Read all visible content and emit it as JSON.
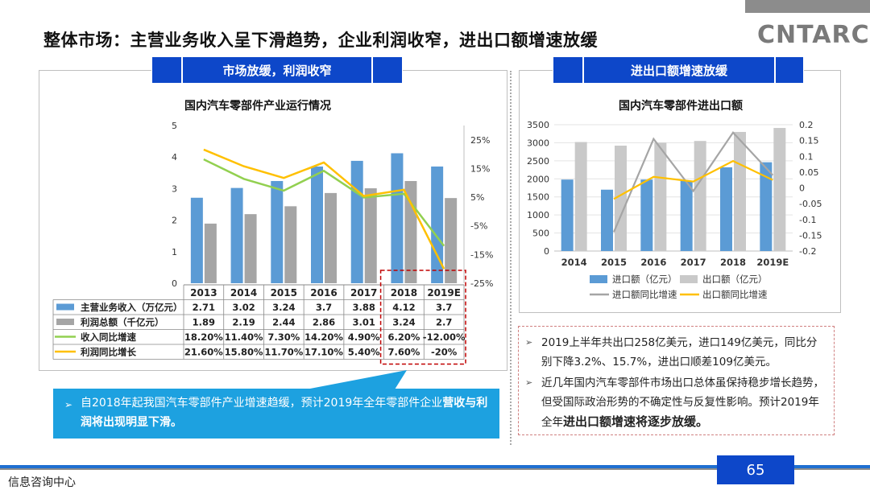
{
  "title": "整体市场：主营业务收入呈下滑趋势，企业利润收窄，进出口额增速放缓",
  "logo": "CNTARC",
  "left_header": "市场放缓，利润收窄",
  "right_header": "进出口额增速放缓",
  "callout": {
    "arrow": "➢",
    "text_plain": "自2018年起我国汽车零部件产业增速趋缓，预计2019年全年零部件企业",
    "text_bold": "营收与利润将出现明显下滑。"
  },
  "notes": {
    "arrow": "➢",
    "b1": "2019上半年共出口258亿美元，进口149亿美元，同比分别下降3.2%、15.7%，进出口顺差109亿美元。",
    "b2_plain": "近几年国内汽车零部件市场出口总体虽保持稳步增长趋势，但受国际政治形势的不确定性与反复性影响。预计2019年全年",
    "b2_bold": "进出口额增速将逐步放缓。"
  },
  "page_number": "65",
  "footer": "信息咨询中心",
  "colors": {
    "blue_bar": "#5b9bd5",
    "gray_bar": "#a5a5a5",
    "green_line": "#92d050",
    "yellow_line": "#ffc000",
    "gray_line": "#a5a5a5",
    "header_blue": "#0d47c9",
    "highlight_box": "#c00000"
  },
  "chart_data": [
    {
      "type": "bar",
      "title": "国内汽车零部件产业运行情况",
      "categories": [
        "2013",
        "2014",
        "2015",
        "2016",
        "2017",
        "2018",
        "2019E"
      ],
      "ylim": [
        0,
        5
      ],
      "yticks": [
        "0",
        "1",
        "2",
        "3",
        "4",
        "5"
      ],
      "y2lim": [
        -25,
        30
      ],
      "y2ticks": [
        "25%",
        "15%",
        "5%",
        "-5%",
        "-15%",
        "-25%"
      ],
      "y2tick_values": [
        25,
        15,
        5,
        -5,
        -15,
        -25
      ],
      "series": [
        {
          "name": "主营业务收入（万亿元）",
          "kind": "bar",
          "axis": "left",
          "values": [
            2.71,
            3.02,
            3.24,
            3.7,
            3.88,
            4.12,
            3.7
          ],
          "labels": [
            "2.71",
            "3.02",
            "3.24",
            "3.7",
            "3.88",
            "4.12",
            "3.7"
          ]
        },
        {
          "name": "利润总额（千亿元）",
          "kind": "bar",
          "axis": "left",
          "values": [
            1.89,
            2.19,
            2.44,
            2.86,
            3.01,
            3.24,
            2.7
          ],
          "labels": [
            "1.89",
            "2.19",
            "2.44",
            "2.86",
            "3.01",
            "3.24",
            "2.7"
          ]
        },
        {
          "name": "收入同比增速",
          "kind": "line",
          "axis": "right",
          "values": [
            18.2,
            11.4,
            7.3,
            14.2,
            4.9,
            6.2,
            -12.0
          ],
          "labels": [
            "18.20%",
            "11.40%",
            "7.30%",
            "14.20%",
            "4.90%",
            "6.20%",
            "-12.00%"
          ]
        },
        {
          "name": "利润同比增长",
          "kind": "line",
          "axis": "right",
          "values": [
            21.6,
            15.8,
            11.7,
            17.1,
            5.4,
            7.6,
            -20
          ],
          "labels": [
            "21.60%",
            "15.80%",
            "11.70%",
            "17.10%",
            "5.40%",
            "7.60%",
            "-20%"
          ]
        }
      ]
    },
    {
      "type": "bar",
      "title": "国内汽车零部件进出口额",
      "categories": [
        "2014",
        "2015",
        "2016",
        "2017",
        "2018",
        "2019E"
      ],
      "ylim": [
        0,
        3500
      ],
      "yticks": [
        "0",
        "500",
        "1000",
        "1500",
        "2000",
        "2500",
        "3000",
        "3500"
      ],
      "y2lim": [
        -0.2,
        0.2
      ],
      "y2ticks": [
        "0.2",
        "0.15",
        "0.1",
        "0.05",
        "0",
        "-0.05",
        "-0.1",
        "-0.15",
        "-0.2"
      ],
      "series": [
        {
          "name": "进口额（亿元）",
          "kind": "bar",
          "axis": "left",
          "values": [
            1980,
            1700,
            1980,
            1950,
            2320,
            2460
          ]
        },
        {
          "name": "出口额（亿元）",
          "kind": "bar",
          "axis": "left",
          "values": [
            3020,
            2920,
            3000,
            3050,
            3300,
            3410
          ]
        },
        {
          "name": "进口额同比增速",
          "kind": "line",
          "axis": "right",
          "values": [
            null,
            -0.14,
            0.155,
            -0.01,
            0.175,
            0.04
          ]
        },
        {
          "name": "出口额同比增速",
          "kind": "line",
          "axis": "right",
          "values": [
            null,
            -0.035,
            0.035,
            0.02,
            0.085,
            0.025
          ]
        }
      ],
      "legend": "bottom"
    }
  ]
}
